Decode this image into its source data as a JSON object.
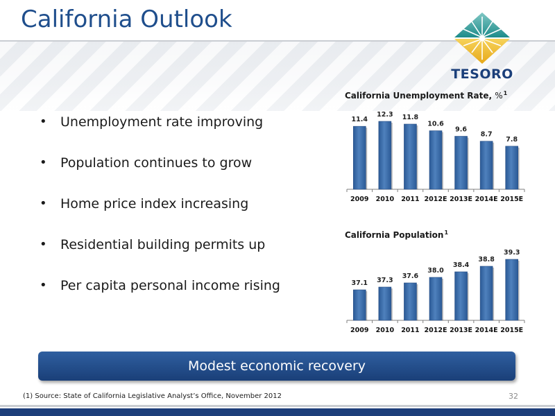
{
  "slide": {
    "title": "California Outlook",
    "logo_text": "TESORO",
    "bullets": [
      "Unemployment rate improving",
      "Population continues to grow",
      "Home price index increasing",
      "Residential building permits up",
      "Per capita personal income rising"
    ],
    "banner_text": "Modest economic recovery",
    "footnote": "(1) Source: State of California Legislative Analyst’s Office, November 2012",
    "page_number": "32"
  },
  "colors": {
    "title": "#1f4e8c",
    "bar_fill": "#4f81bd",
    "bar_dark": "#2b5a96",
    "banner": "#1f4a8a"
  },
  "chart_data": [
    {
      "type": "bar",
      "title": "California Unemployment Rate,",
      "title_unit": "%",
      "title_footnote": "1",
      "categories": [
        "2009",
        "2010",
        "2011",
        "2012E",
        "2013E",
        "2014E",
        "2015E"
      ],
      "values": [
        11.4,
        12.3,
        11.8,
        10.6,
        9.6,
        8.7,
        7.8
      ],
      "labels": [
        "11.4",
        "12.3",
        "11.8",
        "10.6",
        "9.6",
        "8.7",
        "7.8"
      ],
      "ylim": [
        0,
        12.3
      ],
      "grid": false,
      "legend": "none"
    },
    {
      "type": "bar",
      "title": "California Population",
      "title_unit": "",
      "title_footnote": "1",
      "categories": [
        "2009",
        "2010",
        "2011",
        "2012E",
        "2013E",
        "2014E",
        "2015E"
      ],
      "values": [
        37.1,
        37.3,
        37.6,
        38.0,
        38.4,
        38.8,
        39.3
      ],
      "labels": [
        "37.1",
        "37.3",
        "37.6",
        "38.0",
        "38.4",
        "38.8",
        "39.3"
      ],
      "ylim": [
        34.9,
        39.3
      ],
      "grid": false,
      "legend": "none"
    }
  ]
}
